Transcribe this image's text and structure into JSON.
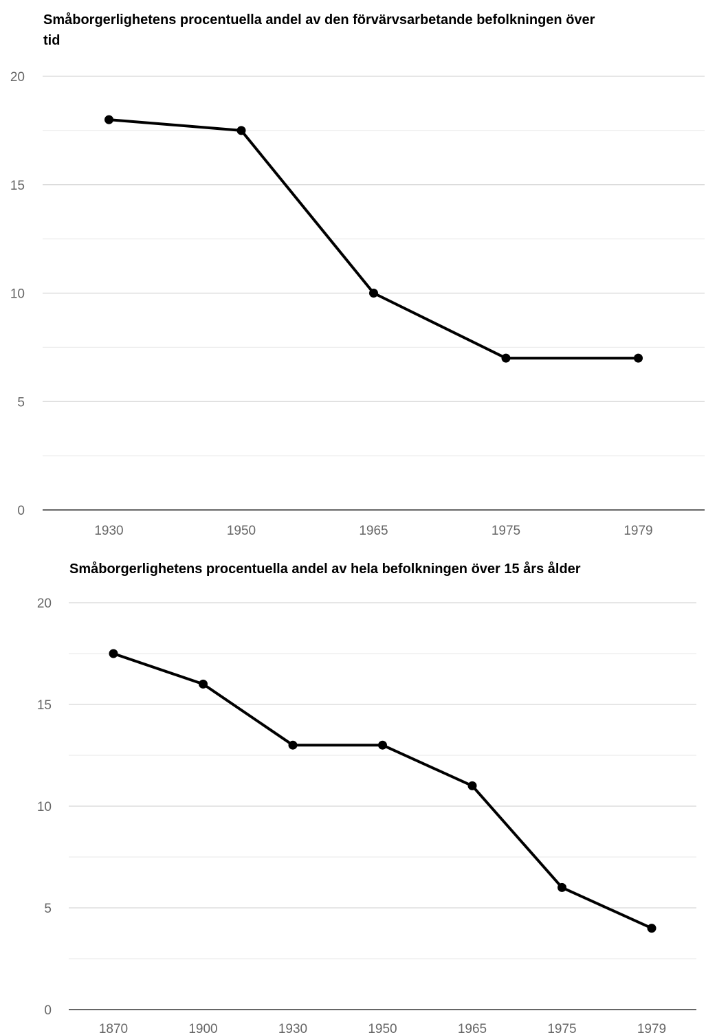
{
  "chart_data": [
    {
      "type": "line",
      "title_line1": "Småborgerlighetens procentuella andel av den förvärvsarbetande befolkningen över",
      "title_line2": "tid",
      "categories": [
        "1930",
        "1950",
        "1965",
        "1975",
        "1979"
      ],
      "values": [
        18,
        17.5,
        10,
        7,
        7
      ],
      "ylim": [
        0,
        20
      ],
      "yticks": [
        0,
        5,
        10,
        15,
        20
      ],
      "grid": true,
      "line_color": "#000000",
      "grid_color": "#d9d9d9"
    },
    {
      "type": "line",
      "title": "Småborgerlighetens procentuella andel av hela befolkningen över 15 års ålder",
      "categories": [
        "1870",
        "1900",
        "1930",
        "1950",
        "1965",
        "1975",
        "1979"
      ],
      "values": [
        17.5,
        16,
        13,
        13,
        11,
        6,
        4
      ],
      "ylim": [
        0,
        20
      ],
      "yticks": [
        0,
        5,
        10,
        15,
        20
      ],
      "grid": true,
      "line_color": "#000000",
      "grid_color": "#d9d9d9"
    }
  ]
}
